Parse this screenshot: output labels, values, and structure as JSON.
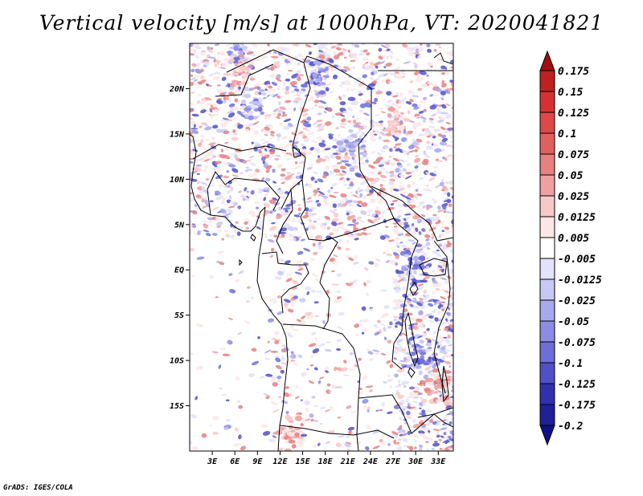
{
  "title": "Vertical velocity [m/s] at 1000hPa, VT: 2020041821",
  "footer": "GrADS: IGES/COLA",
  "map": {
    "lon_range": [
      0,
      35
    ],
    "lat_range": [
      -20,
      25
    ],
    "lon_ticks": [
      "3E",
      "6E",
      "9E",
      "12E",
      "15E",
      "18E",
      "21E",
      "24E",
      "27E",
      "30E",
      "33E"
    ],
    "lat_ticks": [
      "20N",
      "15N",
      "10N",
      "5N",
      "EQ",
      "5S",
      "10S",
      "15S"
    ]
  },
  "colorbar": {
    "labels": [
      "0.175",
      "0.15",
      "0.125",
      "0.1",
      "0.075",
      "0.05",
      "0.025",
      "0.0125",
      "0.005",
      "-0.005",
      "-0.0125",
      "-0.025",
      "-0.05",
      "-0.075",
      "-0.1",
      "-0.125",
      "-0.175",
      "-0.2"
    ],
    "colors": [
      "#a01010",
      "#c02020",
      "#d83030",
      "#e04848",
      "#e06060",
      "#e88080",
      "#f0a0a0",
      "#f8c8c8",
      "#fce6e6",
      "#ffffff",
      "#e2e2fa",
      "#c8c8f4",
      "#a8a8ee",
      "#8c8ce6",
      "#6e6ed8",
      "#5050c8",
      "#3030b0",
      "#202098",
      "#10108a"
    ]
  }
}
